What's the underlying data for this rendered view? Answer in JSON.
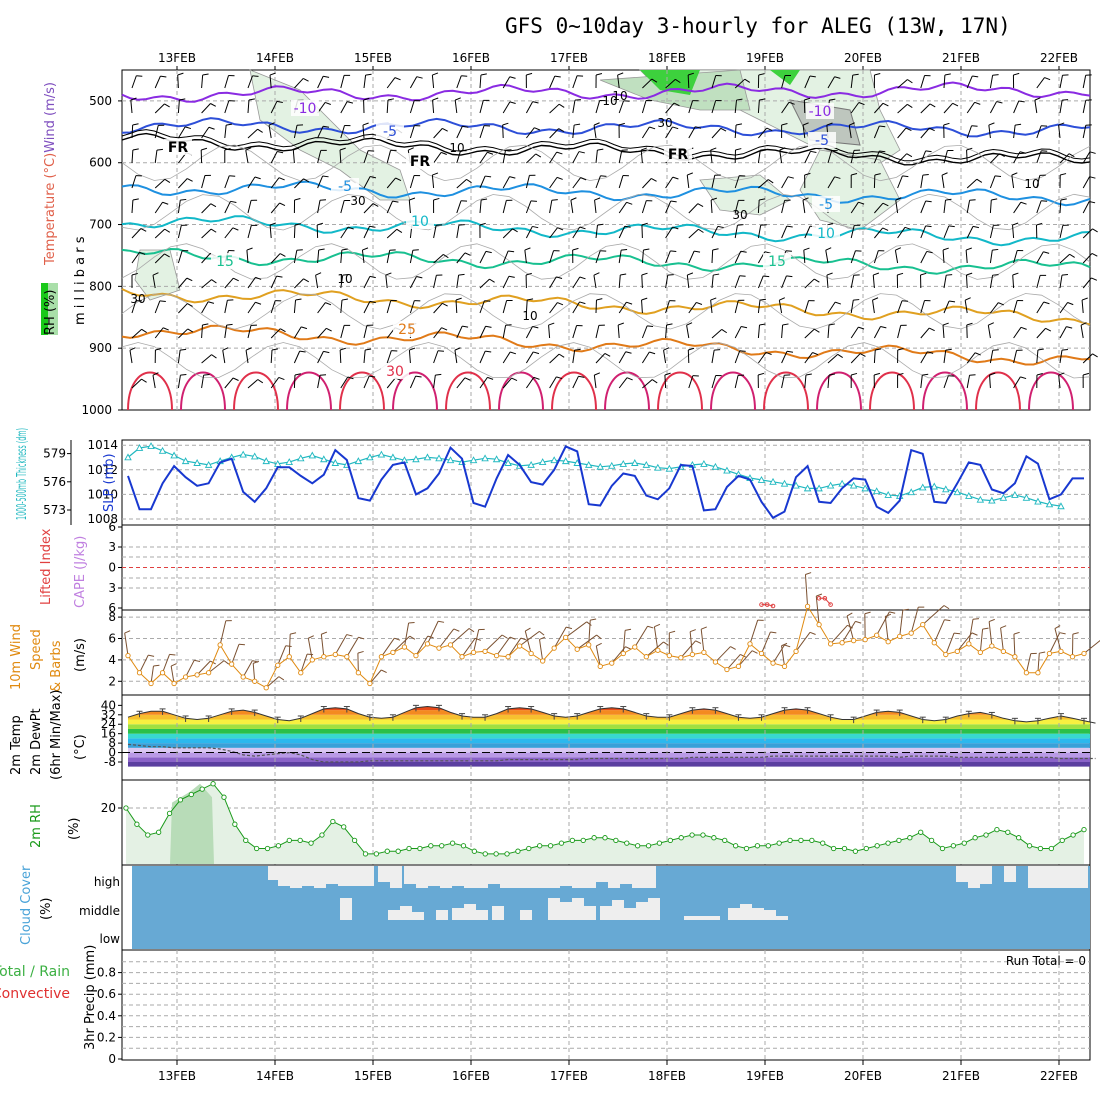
{
  "title": "GFS 0~10day 3-hourly for ALEG (13W, 17N)",
  "colors": {
    "rh_fill": "#a9dfa9",
    "wind_label": "#7f4fbf",
    "temp_label": "#e0604a",
    "thickness": "#20b8c0",
    "slp": "#1838d0",
    "lifted": "#e04040",
    "cape": "#c080e0",
    "wind10": "#e08a10",
    "barbs": "#7a5030",
    "rh2m": "#1a9a1a",
    "cloud_bg": "#67a9d4",
    "cloud": "#eeeeee",
    "precip_total": "#3cb043",
    "precip_conv": "#e03030"
  },
  "chart_data": [
    {
      "type": "line",
      "panel": "upper-air",
      "xlabels": [
        "13FEB",
        "14FEB",
        "15FEB",
        "16FEB",
        "17FEB",
        "18FEB",
        "19FEB",
        "20FEB",
        "21FEB",
        "22FEB"
      ],
      "ylabel_left": [
        "RH (%)",
        "Temperature (°C)",
        "Wind (m/s)"
      ],
      "ylabel_right": "m i l l i b a r s",
      "yticks": [
        "500",
        "600",
        "700",
        "800",
        "900",
        "1000"
      ],
      "contour_labels": [
        "-10",
        "-10",
        "-5",
        "-5",
        "FR",
        "FR",
        "FR",
        "-5",
        "-5",
        "10",
        "10",
        "15",
        "15",
        "25",
        "30"
      ],
      "rh_labels": [
        "10",
        "30",
        "10",
        "30",
        "10",
        "30",
        "10",
        "10",
        "30",
        "10"
      ]
    },
    {
      "type": "line",
      "panel": "slp-thickness",
      "ylabel_left": "1000-500mb Thickness (dm)",
      "ylabel_right": "SLP (mb)",
      "yticks_left": [
        "579",
        "576",
        "573"
      ],
      "yticks_right": [
        "1014",
        "1012",
        "1010",
        "1008"
      ],
      "series": [
        {
          "name": "Thickness",
          "values": [
            578.6,
            579.6,
            579.8,
            579.3,
            578.8,
            578.2,
            578.0,
            577.8,
            578.2,
            578.6,
            578.9,
            578.7,
            578.2,
            577.9,
            578.1,
            578.5,
            578.8,
            578.4,
            578.0,
            577.8,
            578.2,
            578.6,
            578.9,
            578.6,
            578.3,
            578.4,
            578.6,
            578.5,
            578.3,
            578.1,
            578.3,
            578.5,
            578.4,
            578.0,
            577.7,
            577.8,
            578.1,
            578.3,
            578.2,
            578.0,
            577.8,
            577.6,
            577.7,
            577.9,
            578.0,
            577.8,
            577.5,
            577.4,
            577.6,
            577.8,
            577.9,
            577.6,
            577.2,
            576.8,
            576.4,
            576.2,
            576.0,
            575.8,
            575.6,
            575.3,
            575.3,
            575.6,
            575.8,
            575.6,
            575.3,
            575.0,
            574.6,
            574.5,
            574.9,
            575.4,
            575.5,
            575.2,
            574.9,
            574.5,
            574.1,
            574.0,
            574.3,
            574.6,
            574.3,
            573.9,
            573.6,
            573.4
          ]
        },
        {
          "name": "SLP",
          "values": [
            1011.5,
            1008.8,
            1008.8,
            1010.9,
            1012.3,
            1011.4,
            1010.7,
            1010.9,
            1012.6,
            1012.9,
            1010.2,
            1009.4,
            1010.5,
            1012.2,
            1012.2,
            1011.5,
            1010.9,
            1011.6,
            1013.6,
            1012.8,
            1009.7,
            1009.5,
            1011.2,
            1012.4,
            1012.6,
            1010.0,
            1010.5,
            1011.7,
            1013.8,
            1012.9,
            1009.3,
            1009.0,
            1011.3,
            1013.2,
            1012.4,
            1011.0,
            1010.8,
            1012.0,
            1013.9,
            1013.5,
            1009.2,
            1009.1,
            1010.7,
            1011.7,
            1011.5,
            1009.9,
            1009.6,
            1010.5,
            1012.4,
            1012.3,
            1008.7,
            1008.8,
            1010.6,
            1011.5,
            1011.2,
            1009.4,
            1008.1,
            1008.6,
            1011.4,
            1012.3,
            1009.4,
            1009.3,
            1010.5,
            1011.3,
            1011.2,
            1009.0,
            1008.5,
            1009.5,
            1013.6,
            1013.3,
            1009.4,
            1009.3,
            1010.9,
            1012.6,
            1012.4,
            1010.4,
            1010.1,
            1010.9,
            1013.1,
            1012.5,
            1009.6,
            1010.0,
            1011.3,
            1011.3
          ]
        }
      ]
    },
    {
      "type": "line",
      "panel": "stability",
      "ylabel_left": [
        "Lifted Index",
        "CAPE (J/kg)"
      ],
      "yticks": [
        "6",
        "3",
        "0",
        "3",
        "6"
      ],
      "series": [
        {
          "name": "Lifted Index",
          "x": [
            55,
            55.5,
            56,
            60,
            60.5,
            61
          ],
          "values": [
            5.3,
            5.3,
            5.5,
            4.4,
            4.4,
            5.3
          ]
        }
      ]
    },
    {
      "type": "line",
      "panel": "wind10m",
      "ylabel_left": [
        "10m Wind",
        "Speed",
        "& Barbs"
      ],
      "ylabel_right": "(m/s)",
      "yticks": [
        "8",
        "6",
        "4",
        "2"
      ],
      "series": [
        {
          "name": "Speed",
          "values": [
            4.4,
            2.8,
            1.8,
            2.8,
            1.8,
            2.4,
            2.6,
            2.8,
            5.4,
            3.6,
            2.4,
            2.0,
            1.4,
            3.5,
            4.3,
            2.8,
            4.0,
            4.3,
            4.5,
            4.3,
            2.8,
            1.8,
            4.3,
            4.7,
            5.2,
            4.4,
            5.5,
            5.1,
            5.4,
            4.3,
            4.7,
            4.8,
            4.4,
            4.3,
            5.3,
            4.6,
            3.9,
            5.1,
            6.1,
            5.0,
            5.4,
            3.4,
            3.7,
            4.6,
            5.2,
            4.3,
            4.9,
            4.4,
            4.2,
            4.5,
            4.7,
            3.8,
            3.1,
            3.4,
            5.5,
            4.6,
            3.7,
            3.4,
            4.8,
            9.0,
            7.3,
            5.5,
            5.6,
            5.8,
            5.9,
            6.3,
            5.7,
            6.2,
            6.5,
            7.3,
            5.6,
            4.5,
            4.8,
            5.5,
            4.7,
            5.3,
            4.8,
            4.3,
            2.8,
            2.8,
            4.6,
            4.8,
            4.3,
            4.6
          ]
        }
      ]
    },
    {
      "type": "area",
      "panel": "temp2m",
      "ylabel_left": [
        "2m Temp",
        "2m DewPt",
        "(6hr Min/Max)"
      ],
      "ylabel_right": "(°C)",
      "yticks": [
        "40",
        "32",
        "24",
        "16",
        "8",
        "0",
        "-8"
      ],
      "series": [
        {
          "name": "Temp",
          "values": [
            30,
            33,
            35,
            35,
            32,
            29,
            28,
            29,
            32,
            35,
            36,
            34,
            31,
            28,
            27,
            29,
            33,
            37,
            38,
            37,
            33,
            30,
            29,
            30,
            34,
            38,
            39,
            38,
            34,
            31,
            30,
            30,
            33,
            37,
            38,
            37,
            34,
            31,
            30,
            31,
            34,
            37,
            38,
            37,
            34,
            31,
            30,
            30,
            33,
            36,
            37,
            36,
            33,
            30,
            29,
            30,
            33,
            36,
            37,
            36,
            33,
            30,
            28,
            28,
            31,
            34,
            35,
            34,
            31,
            28,
            27,
            28,
            31,
            33,
            34,
            32,
            29,
            27,
            26,
            27,
            29,
            31,
            29,
            27,
            25
          ]
        },
        {
          "name": "DewPt",
          "values": [
            7,
            6,
            5,
            5,
            4,
            4,
            4,
            4,
            3,
            1,
            -2,
            -3,
            -2,
            -1,
            0,
            -2,
            -6,
            -8,
            -8,
            -8,
            -8,
            -7,
            -7,
            -7,
            -7,
            -7,
            -7,
            -7,
            -7,
            -7,
            -7,
            -7,
            -7,
            -6,
            -6,
            -6,
            -6,
            -6,
            -6,
            -6,
            -5,
            -5,
            -5,
            -5,
            -5,
            -5,
            -5,
            -5,
            -5,
            -4,
            -4,
            -4,
            -4,
            -4,
            -4,
            -4,
            -3,
            -3,
            -3,
            -3,
            -3,
            -3,
            -3,
            -3,
            -3,
            -3,
            -3,
            -4,
            -3,
            -3,
            -3,
            -3,
            -4,
            -4,
            -4,
            -4,
            -4,
            -4,
            -4,
            -4,
            -4,
            -5,
            -5,
            -5,
            -5
          ]
        }
      ]
    },
    {
      "type": "area",
      "panel": "rh2m",
      "ylabel_left": "2m RH",
      "ylabel_right": "(%)",
      "yticks": [
        "20"
      ],
      "series": [
        {
          "name": "RH",
          "values": [
            20,
            14,
            10,
            11,
            18,
            23,
            25,
            27,
            29,
            24,
            14,
            8,
            5,
            5,
            6,
            8,
            8,
            7,
            10,
            15,
            13,
            8,
            3,
            3,
            4,
            4,
            5,
            5,
            6,
            6,
            7,
            6,
            4,
            3,
            3,
            3,
            4,
            5,
            6,
            6,
            7,
            8,
            8,
            9,
            9,
            8,
            7,
            6,
            6,
            7,
            8,
            9,
            10,
            10,
            9,
            8,
            6,
            5,
            6,
            6,
            7,
            8,
            8,
            8,
            7,
            5,
            5,
            4,
            5,
            6,
            7,
            8,
            9,
            11,
            8,
            5,
            6,
            7,
            9,
            10,
            12,
            11,
            9,
            6,
            5,
            5,
            8,
            10,
            12
          ]
        }
      ]
    },
    {
      "type": "heatmap",
      "panel": "cloud-cover",
      "ylabel_left": [
        "Cloud Cover",
        "(%)"
      ],
      "yticks": [
        "high",
        "middle",
        "low"
      ]
    },
    {
      "type": "bar",
      "panel": "precip",
      "ylabel_left": [
        "Total / Rain",
        "Convective"
      ],
      "ylabel_right": "3hr Precip (mm)",
      "yticks": [
        "0.8",
        "0.6",
        "0.4",
        "0.2",
        "0"
      ],
      "run_total_label": "Run Total = 0",
      "values": []
    }
  ]
}
